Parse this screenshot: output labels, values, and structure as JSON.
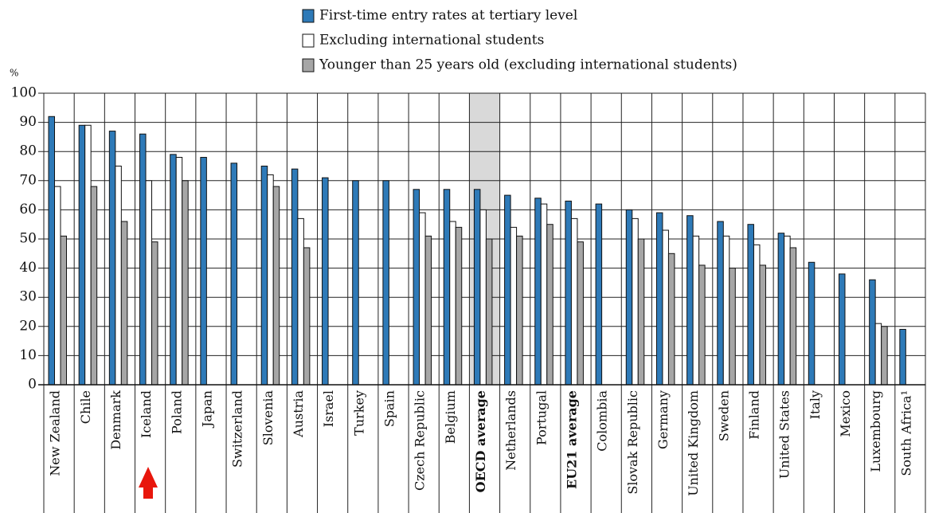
{
  "chart_data": {
    "type": "bar",
    "y_unit_label": "%",
    "categories": [
      "New Zealand",
      "Chile",
      "Denmark",
      "Iceland",
      "Poland",
      "Japan",
      "Switzerland",
      "Slovenia",
      "Austria",
      "Israel",
      "Turkey",
      "Spain",
      "Czech Republic",
      "Belgium",
      "OECD average",
      "Netherlands",
      "Portugal",
      "EU21 average",
      "Colombia",
      "Slovak Republic",
      "Germany",
      "United Kingdom",
      "Sweden",
      "Finland",
      "United States",
      "Italy",
      "Mexico",
      "Luxembourg",
      "South Africa¹"
    ],
    "series": [
      {
        "name": "First-time entry rates at tertiary level",
        "color": "#2e7ab8",
        "values": [
          92,
          89,
          87,
          86,
          79,
          78,
          76,
          75,
          74,
          71,
          70,
          70,
          67,
          67,
          67,
          65,
          64,
          63,
          62,
          60,
          59,
          58,
          56,
          55,
          52,
          42,
          38,
          36,
          19
        ]
      },
      {
        "name": "Excluding international students",
        "color": "#ffffff",
        "values": [
          68,
          89,
          75,
          70,
          78,
          null,
          null,
          72,
          57,
          null,
          null,
          null,
          59,
          56,
          60,
          54,
          62,
          57,
          null,
          57,
          53,
          51,
          51,
          48,
          51,
          null,
          null,
          21,
          null
        ]
      },
      {
        "name": "Younger than 25 years old (excluding international students)",
        "color": "#a6a6a6",
        "values": [
          51,
          68,
          56,
          49,
          70,
          null,
          null,
          68,
          47,
          null,
          null,
          null,
          51,
          54,
          50,
          51,
          55,
          49,
          null,
          50,
          45,
          41,
          40,
          41,
          47,
          null,
          null,
          20,
          null
        ]
      }
    ],
    "ylim": [
      0,
      100
    ],
    "yticks": [
      0,
      10,
      20,
      30,
      40,
      50,
      60,
      70,
      80,
      90,
      100
    ],
    "grid": true
  }
}
